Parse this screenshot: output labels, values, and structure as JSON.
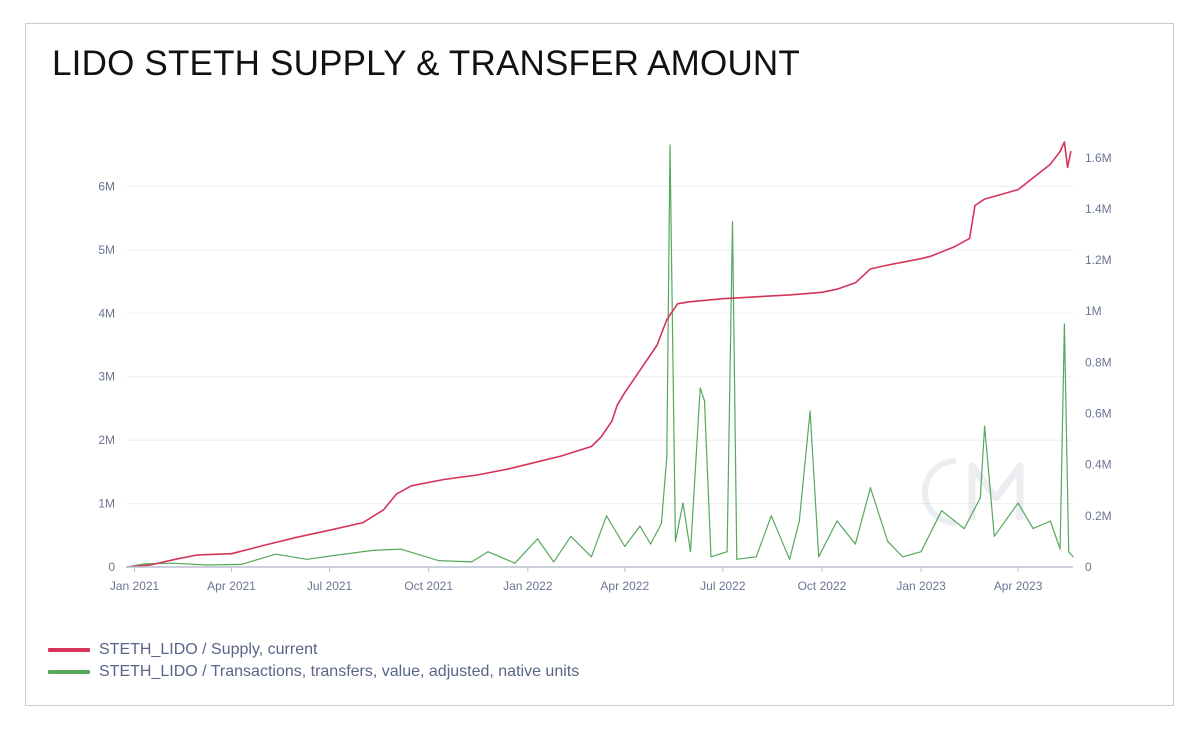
{
  "title": "LIDO STETH SUPPLY & TRANSFER AMOUNT",
  "chart_data": {
    "type": "line",
    "title": "LIDO STETH SUPPLY & TRANSFER AMOUNT",
    "x_range": [
      "2020-12-25",
      "2023-05-22"
    ],
    "x_ticks": [
      {
        "date": "2021-01-01",
        "label": "Jan 2021"
      },
      {
        "date": "2021-04-01",
        "label": "Apr 2021"
      },
      {
        "date": "2021-07-01",
        "label": "Jul 2021"
      },
      {
        "date": "2021-10-01",
        "label": "Oct 2021"
      },
      {
        "date": "2022-01-01",
        "label": "Jan 2022"
      },
      {
        "date": "2022-04-01",
        "label": "Apr 2022"
      },
      {
        "date": "2022-07-01",
        "label": "Jul 2022"
      },
      {
        "date": "2022-10-01",
        "label": "Oct 2022"
      },
      {
        "date": "2023-01-01",
        "label": "Jan 2023"
      },
      {
        "date": "2023-04-01",
        "label": "Apr 2023"
      }
    ],
    "y_left": {
      "range": [
        0,
        6700000
      ],
      "ticks": [
        0,
        1000000,
        2000000,
        3000000,
        4000000,
        5000000,
        6000000
      ],
      "tick_labels": [
        "0",
        "1M",
        "2M",
        "3M",
        "4M",
        "5M",
        "6M"
      ]
    },
    "y_right": {
      "range": [
        0,
        1650000
      ],
      "ticks": [
        0,
        200000,
        400000,
        600000,
        800000,
        1000000,
        1200000,
        1400000,
        1600000
      ],
      "tick_labels": [
        "0",
        "0.2M",
        "0.4M",
        "0.6M",
        "0.8M",
        "1M",
        "1.2M",
        "1.4M",
        "1.6M"
      ]
    },
    "grid": true,
    "legend_position": "bottom-left",
    "series": [
      {
        "name": "STETH_LIDO / Supply, current",
        "axis": "left",
        "color": "#d6335a",
        "points": [
          [
            "2020-12-25",
            0
          ],
          [
            "2021-01-15",
            30000
          ],
          [
            "2021-02-10",
            130000
          ],
          [
            "2021-03-01",
            190000
          ],
          [
            "2021-04-01",
            210000
          ],
          [
            "2021-05-01",
            340000
          ],
          [
            "2021-06-01",
            470000
          ],
          [
            "2021-07-01",
            580000
          ],
          [
            "2021-08-01",
            700000
          ],
          [
            "2021-08-20",
            900000
          ],
          [
            "2021-09-01",
            1150000
          ],
          [
            "2021-09-15",
            1280000
          ],
          [
            "2021-10-15",
            1380000
          ],
          [
            "2021-11-15",
            1450000
          ],
          [
            "2021-12-15",
            1550000
          ],
          [
            "2022-01-01",
            1620000
          ],
          [
            "2022-02-01",
            1750000
          ],
          [
            "2022-03-01",
            1900000
          ],
          [
            "2022-03-10",
            2050000
          ],
          [
            "2022-03-20",
            2300000
          ],
          [
            "2022-03-25",
            2550000
          ],
          [
            "2022-04-01",
            2750000
          ],
          [
            "2022-04-15",
            3100000
          ],
          [
            "2022-05-01",
            3500000
          ],
          [
            "2022-05-10",
            3900000
          ],
          [
            "2022-05-20",
            4150000
          ],
          [
            "2022-05-30",
            4180000
          ],
          [
            "2022-07-01",
            4230000
          ],
          [
            "2022-08-01",
            4260000
          ],
          [
            "2022-09-01",
            4290000
          ],
          [
            "2022-10-01",
            4330000
          ],
          [
            "2022-10-15",
            4380000
          ],
          [
            "2022-11-01",
            4480000
          ],
          [
            "2022-11-15",
            4700000
          ],
          [
            "2022-12-01",
            4760000
          ],
          [
            "2023-01-01",
            4860000
          ],
          [
            "2023-01-10",
            4900000
          ],
          [
            "2023-02-01",
            5050000
          ],
          [
            "2023-02-15",
            5180000
          ],
          [
            "2023-02-20",
            5700000
          ],
          [
            "2023-03-01",
            5800000
          ],
          [
            "2023-04-01",
            5950000
          ],
          [
            "2023-05-01",
            6350000
          ],
          [
            "2023-05-10",
            6550000
          ],
          [
            "2023-05-14",
            6700000
          ],
          [
            "2023-05-17",
            6300000
          ],
          [
            "2023-05-20",
            6550000
          ]
        ]
      },
      {
        "name": "STETH_LIDO / Transactions, transfers, value, adjusted, native units",
        "axis": "right",
        "color": "#55a95c",
        "points": [
          [
            "2020-12-25",
            0
          ],
          [
            "2021-01-10",
            12000
          ],
          [
            "2021-02-05",
            15000
          ],
          [
            "2021-03-10",
            8000
          ],
          [
            "2021-04-10",
            10000
          ],
          [
            "2021-05-12",
            50000
          ],
          [
            "2021-06-10",
            30000
          ],
          [
            "2021-07-05",
            45000
          ],
          [
            "2021-08-10",
            65000
          ],
          [
            "2021-09-05",
            70000
          ],
          [
            "2021-10-10",
            25000
          ],
          [
            "2021-11-10",
            20000
          ],
          [
            "2021-11-25",
            60000
          ],
          [
            "2021-12-20",
            15000
          ],
          [
            "2022-01-10",
            110000
          ],
          [
            "2022-01-25",
            20000
          ],
          [
            "2022-02-10",
            120000
          ],
          [
            "2022-03-01",
            40000
          ],
          [
            "2022-03-15",
            200000
          ],
          [
            "2022-04-01",
            80000
          ],
          [
            "2022-04-15",
            160000
          ],
          [
            "2022-04-25",
            90000
          ],
          [
            "2022-05-05",
            170000
          ],
          [
            "2022-05-10",
            430000
          ],
          [
            "2022-05-13",
            1650000
          ],
          [
            "2022-05-18",
            100000
          ],
          [
            "2022-05-25",
            250000
          ],
          [
            "2022-06-01",
            60000
          ],
          [
            "2022-06-10",
            700000
          ],
          [
            "2022-06-14",
            650000
          ],
          [
            "2022-06-20",
            40000
          ],
          [
            "2022-07-05",
            60000
          ],
          [
            "2022-07-10",
            1350000
          ],
          [
            "2022-07-14",
            30000
          ],
          [
            "2022-08-01",
            40000
          ],
          [
            "2022-08-15",
            200000
          ],
          [
            "2022-09-01",
            30000
          ],
          [
            "2022-09-10",
            180000
          ],
          [
            "2022-09-20",
            610000
          ],
          [
            "2022-09-28",
            40000
          ],
          [
            "2022-10-15",
            180000
          ],
          [
            "2022-11-01",
            90000
          ],
          [
            "2022-11-15",
            310000
          ],
          [
            "2022-12-01",
            100000
          ],
          [
            "2022-12-15",
            40000
          ],
          [
            "2023-01-01",
            60000
          ],
          [
            "2023-01-20",
            220000
          ],
          [
            "2023-02-10",
            150000
          ],
          [
            "2023-02-25",
            270000
          ],
          [
            "2023-03-01",
            550000
          ],
          [
            "2023-03-10",
            120000
          ],
          [
            "2023-04-01",
            250000
          ],
          [
            "2023-04-15",
            150000
          ],
          [
            "2023-05-01",
            180000
          ],
          [
            "2023-05-10",
            70000
          ],
          [
            "2023-05-14",
            950000
          ],
          [
            "2023-05-18",
            60000
          ],
          [
            "2023-05-22",
            40000
          ]
        ]
      }
    ]
  },
  "legend": [
    {
      "label": "STETH_LIDO / Supply, current",
      "color": "#d6335a"
    },
    {
      "label": "STETH_LIDO / Transactions, transfers, value, adjusted, native units",
      "color": "#55a95c"
    }
  ]
}
